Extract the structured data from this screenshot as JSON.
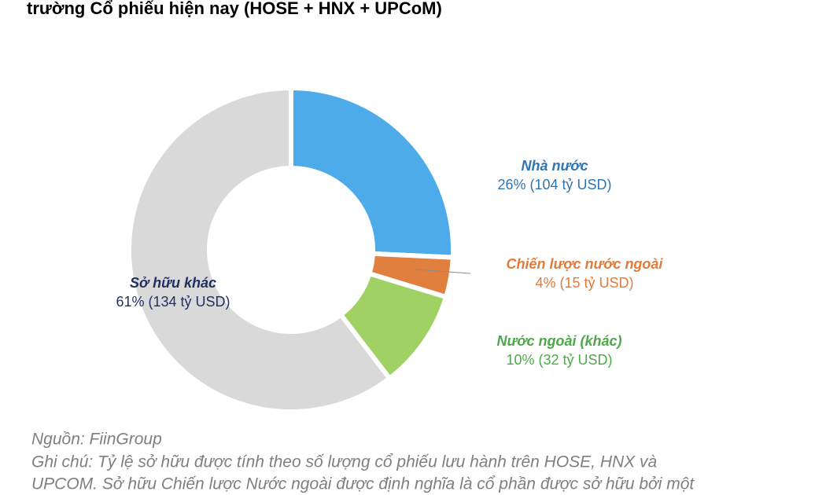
{
  "chart_data": {
    "type": "donut",
    "title": "trường Cổ phiếu hiện nay (HOSE + HNX + UPCoM)",
    "categories": [
      "Nhà nước",
      "Chiến lược nước ngoài",
      "Nước ngoài (khác)",
      "Sở hữu khác"
    ],
    "values": [
      26,
      4,
      10,
      61
    ],
    "value_labels": [
      "26% (104 tỷ USD)",
      "4% (15 tỷ USD)",
      "10% (32 tỷ USD)",
      "61% (134 tỷ USD)"
    ],
    "colors": [
      "#4dabe9",
      "#e07f3e",
      "#9fd164",
      "#d9d9d9"
    ],
    "label_colors": [
      "#2e75b6",
      "#e07b39",
      "#4ea84a",
      "#1f2f5f"
    ]
  },
  "source": "Nguồn: FiinGroup",
  "notes": [
    "Ghi chú: Tỷ lệ sở hữu được tính theo số lượng cổ phiếu lưu hành trên HOSE, HNX và",
    "UPCOM. Sở hữu Chiến lược Nước ngoài được định nghĩa là cổ phần được sở hữu bởi một"
  ]
}
